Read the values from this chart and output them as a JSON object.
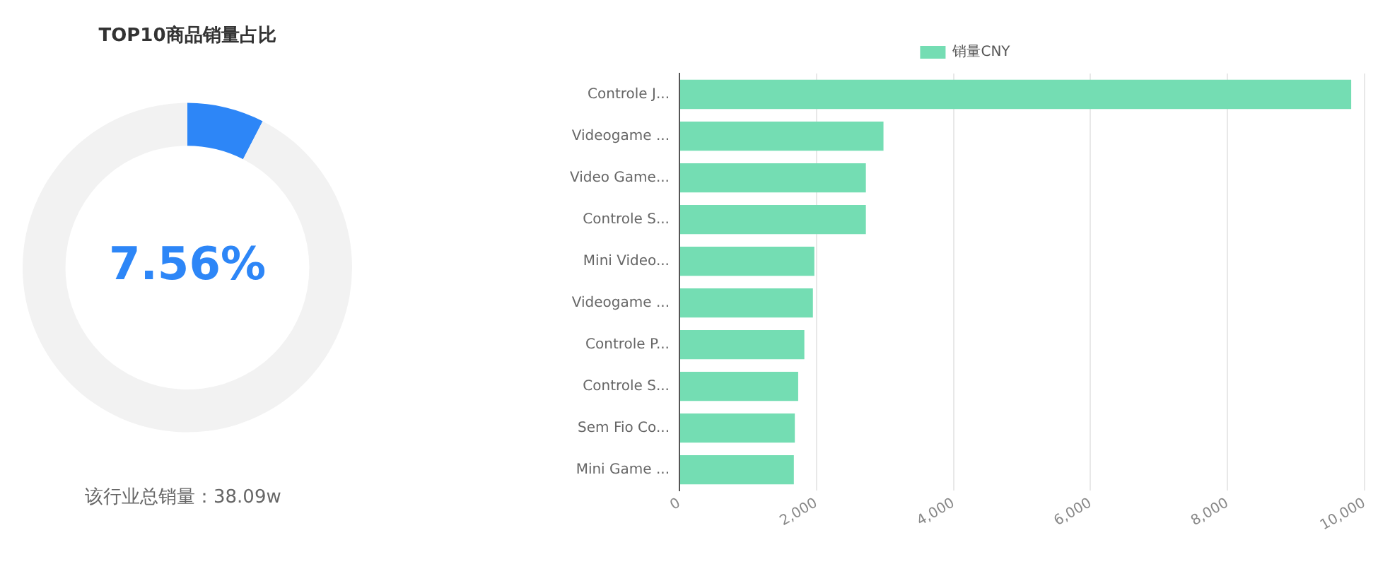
{
  "chart_data": [
    {
      "type": "donut",
      "title": "TOP10商品销量占比",
      "categories": [
        null,
        null
      ],
      "values": [
        7.56,
        92.44
      ],
      "colors": [
        "#2d86f7",
        "#f2f2f2"
      ],
      "value_labels": [
        "7.56%",
        null
      ],
      "annotations": [
        "该行业总销量：38.09w"
      ],
      "legend": false
    },
    {
      "type": "bar",
      "orientation": "horizontal",
      "categories": [
        "Controle J...",
        "Videogame ...",
        "Video Game...",
        "Controle S...",
        "Mini Video...",
        "Videogame ...",
        "Controle P...",
        "Controle S...",
        "Sem Fio Co...",
        "Mini Game ..."
      ],
      "series": [
        {
          "name": "销量CNY",
          "color": "#74ddb3",
          "values": [
            9805,
            2978,
            2721,
            2721,
            1969,
            1948,
            1823,
            1733,
            1684,
            1670
          ]
        }
      ],
      "xlim": [
        0,
        10000
      ],
      "xticks": [
        0,
        {
          "value": 2000,
          "label": "2,000"
        },
        {
          "value": 4000,
          "label": "4,000"
        },
        {
          "value": 6000,
          "label": "6,000"
        },
        {
          "value": 8000,
          "label": "8,000"
        },
        {
          "value": 10000,
          "label": "10,000"
        }
      ],
      "grid": "x",
      "legend": "top"
    }
  ]
}
